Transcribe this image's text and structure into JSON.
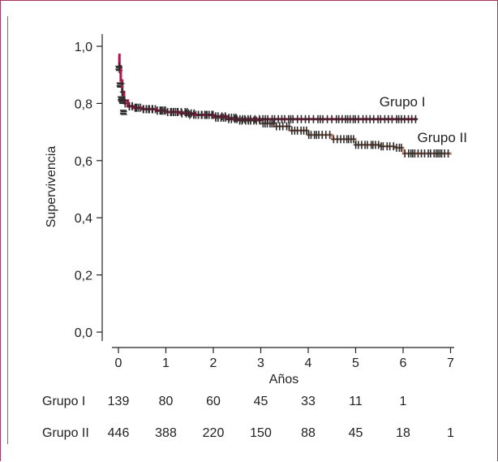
{
  "chart_data": {
    "type": "line",
    "title": "",
    "xlabel": "Años",
    "ylabel": "Supervivencia",
    "xlim": [
      0,
      7
    ],
    "ylim": [
      0,
      1
    ],
    "x_ticks": [
      0,
      1,
      2,
      3,
      4,
      5,
      6,
      7
    ],
    "x_tick_labels": [
      "0",
      "1",
      "2",
      "3",
      "4",
      "5",
      "6",
      "7"
    ],
    "y_ticks": [
      0,
      0.2,
      0.4,
      0.6,
      0.8,
      1.0
    ],
    "y_tick_labels": [
      "0,0",
      "0,2",
      "0,4",
      "0,6",
      "0,8",
      "1,0"
    ],
    "grid": false,
    "series": [
      {
        "name": "Grupo I",
        "color": "#b0174f",
        "x": [
          0,
          0.02,
          0.05,
          0.08,
          0.12,
          0.2,
          0.3,
          0.5,
          0.8,
          1.0,
          1.3,
          1.6,
          2.0,
          2.3,
          3.0,
          4.0,
          5.0,
          6.3
        ],
        "y": [
          0.97,
          0.93,
          0.88,
          0.84,
          0.81,
          0.79,
          0.785,
          0.78,
          0.775,
          0.77,
          0.765,
          0.76,
          0.755,
          0.745,
          0.745,
          0.745,
          0.745,
          0.745
        ]
      },
      {
        "name": "Grupo II",
        "color": "#2a2a2a",
        "x": [
          0,
          0.02,
          0.05,
          0.08,
          0.12,
          0.2,
          0.3,
          0.5,
          0.8,
          1.0,
          1.5,
          2.0,
          2.5,
          3.0,
          3.3,
          3.6,
          4.0,
          4.5,
          5.0,
          5.5,
          5.8,
          6.0,
          7.0
        ],
        "y": [
          0.97,
          0.92,
          0.87,
          0.83,
          0.8,
          0.79,
          0.785,
          0.78,
          0.775,
          0.77,
          0.76,
          0.75,
          0.74,
          0.73,
          0.72,
          0.705,
          0.69,
          0.675,
          0.655,
          0.65,
          0.645,
          0.625,
          0.62
        ]
      }
    ],
    "annotations": [
      {
        "text": "Grupo I",
        "x": 5.5,
        "y": 0.79
      },
      {
        "text": "Grupo II",
        "x": 6.3,
        "y": 0.665
      }
    ],
    "risk_table": {
      "rows": [
        {
          "label": "Grupo I",
          "values": [
            "139",
            "80",
            "60",
            "45",
            "33",
            "11",
            "1",
            ""
          ]
        },
        {
          "label": "Grupo II",
          "values": [
            "446",
            "388",
            "220",
            "150",
            "88",
            "45",
            "18",
            "1"
          ]
        }
      ]
    }
  }
}
